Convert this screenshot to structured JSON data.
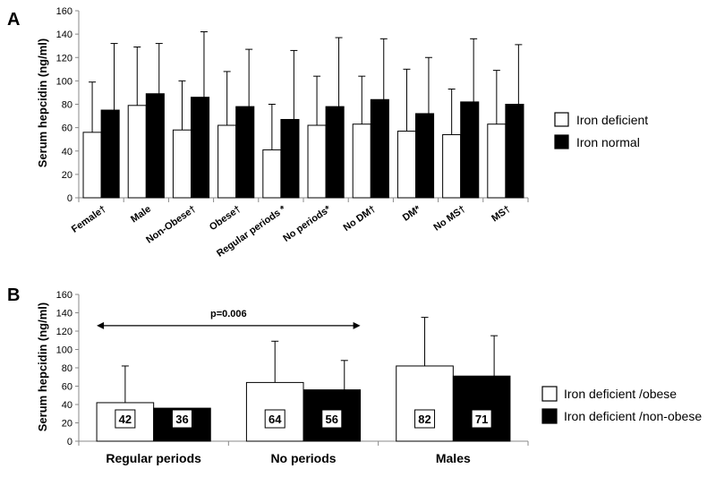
{
  "colors": {
    "open": "#ffffff",
    "filled": "#000000",
    "stroke": "#000000",
    "axis": "#888888"
  },
  "chart_data": [
    {
      "panel": "A",
      "type": "bar",
      "ylabel": "Serum hepcidin (ng/ml)",
      "ylim": [
        0,
        160
      ],
      "yticks": [
        0,
        20,
        40,
        60,
        80,
        100,
        120,
        140,
        160
      ],
      "categories": [
        "Female†",
        "Male",
        "Non-Obese†",
        "Obese†",
        "Regular periods *",
        "No periods*",
        "No DM†",
        "DM*",
        "No MS†",
        "MS†"
      ],
      "series": [
        {
          "name": "Iron deficient",
          "style": "open",
          "values": [
            56,
            79,
            58,
            62,
            41,
            62,
            63,
            57,
            54,
            63
          ],
          "error_upper": [
            99,
            129,
            100,
            108,
            80,
            104,
            104,
            110,
            93,
            109
          ]
        },
        {
          "name": "Iron normal",
          "style": "filled",
          "values": [
            75,
            89,
            86,
            78,
            67,
            78,
            84,
            72,
            82,
            80
          ],
          "error_upper": [
            132,
            132,
            142,
            127,
            126,
            137,
            136,
            120,
            136,
            131
          ]
        }
      ],
      "legend_position": "right"
    },
    {
      "panel": "B",
      "type": "bar",
      "ylabel": "Serum hepcidin (ng/ml)",
      "ylim": [
        0,
        160
      ],
      "yticks": [
        0,
        20,
        40,
        60,
        80,
        100,
        120,
        140,
        160
      ],
      "categories": [
        "Regular periods",
        "No periods",
        "Males"
      ],
      "series": [
        {
          "name": "Iron deficient /obese",
          "style": "open",
          "values": [
            42,
            64,
            82
          ],
          "error_upper": [
            82,
            109,
            135
          ],
          "labels": [
            "42",
            "64",
            "82"
          ]
        },
        {
          "name": "Iron deficient  /non-obese",
          "style": "filled",
          "values": [
            36,
            56,
            71
          ],
          "error_upper": [
            null,
            88,
            115
          ],
          "labels": [
            "36",
            "56",
            "71"
          ]
        }
      ],
      "annotation": {
        "text": "p=0.006",
        "from_category": 0,
        "to_category": 1,
        "y": 126
      },
      "legend_position": "right"
    }
  ]
}
